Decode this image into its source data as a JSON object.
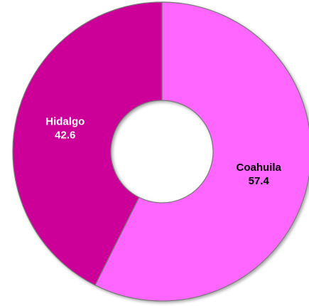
{
  "chart_data": {
    "type": "donut",
    "categories": [
      "Coahuila",
      "Hidalgo"
    ],
    "values": [
      57.4,
      42.6
    ],
    "colors": [
      "#ff66ff",
      "#cc0099"
    ],
    "label_colors": [
      "#000000",
      "#ffffff"
    ]
  }
}
